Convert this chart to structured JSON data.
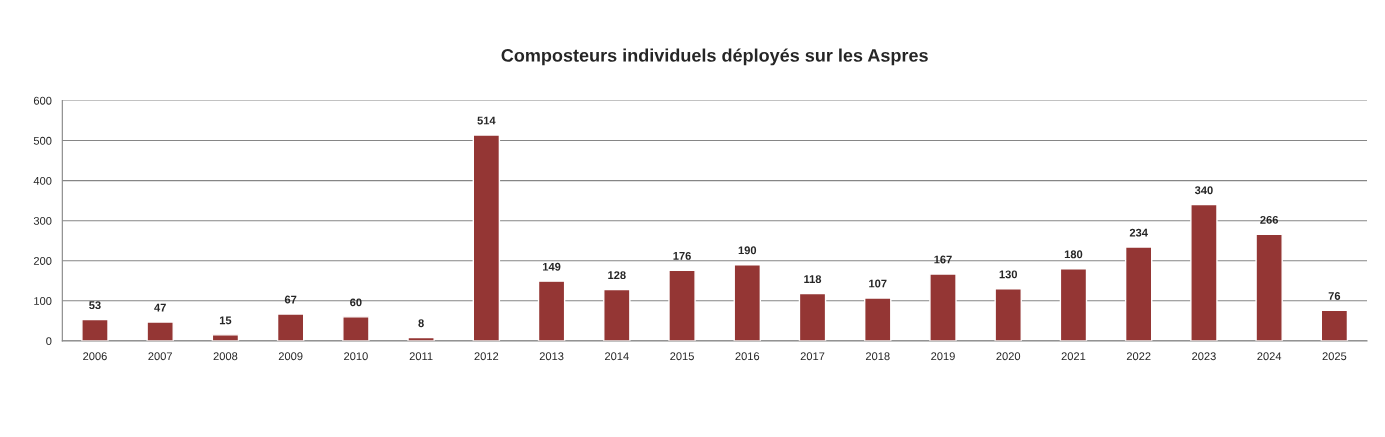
{
  "chart_data": {
    "type": "bar",
    "title": "Composteurs individuels déployés sur les Aspres",
    "categories": [
      "2006",
      "2007",
      "2008",
      "2009",
      "2010",
      "2011",
      "2012",
      "2013",
      "2014",
      "2015",
      "2016",
      "2017",
      "2018",
      "2019",
      "2020",
      "2021",
      "2022",
      "2023",
      "2024",
      "2025"
    ],
    "values": [
      53,
      47,
      15,
      67,
      60,
      8,
      514,
      149,
      128,
      176,
      190,
      118,
      107,
      167,
      130,
      180,
      234,
      340,
      266,
      76
    ],
    "color": "#943634",
    "ylim": [
      0,
      600
    ],
    "yticks": [
      0,
      100,
      200,
      300,
      400,
      500,
      600
    ],
    "grid": "y",
    "data_labels": true
  }
}
